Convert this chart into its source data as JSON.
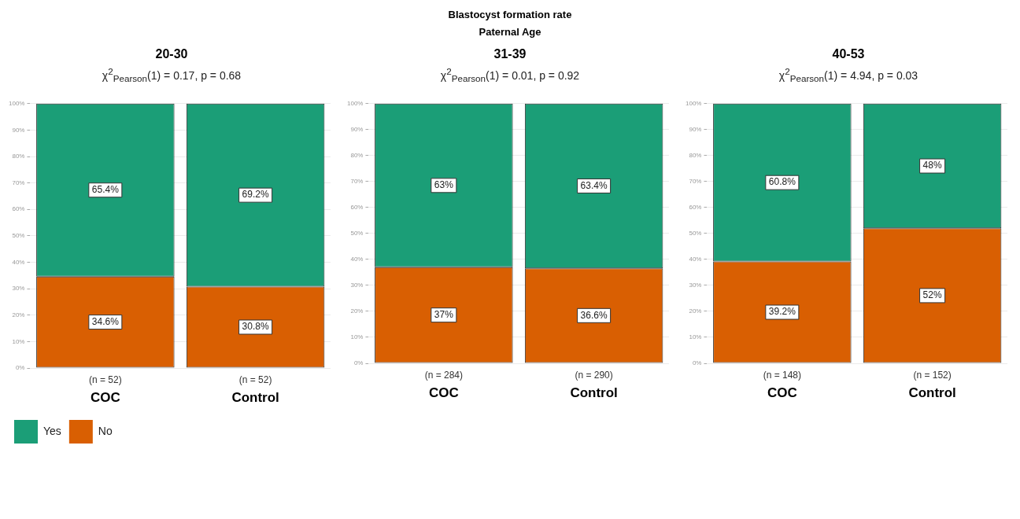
{
  "chart_data": [
    {
      "type": "bar",
      "stacked": true,
      "title": "20-30",
      "subtitle": "χ$^{2}$$_{Pearson}$(1) = 0.17, p = 0.68",
      "annotations": [
        "Blastocyst formation rate",
        "Paternal Age"
      ],
      "categories": [
        "(n = 52)\nCOC",
        "(n = 52)\nControl"
      ],
      "ylim": [
        0,
        100
      ],
      "yticks": [
        {
          "value": 0,
          "label": "0%"
        },
        {
          "value": 10,
          "label": "10%"
        },
        {
          "value": 20,
          "label": "20%"
        },
        {
          "value": 30,
          "label": "30%"
        },
        {
          "value": 40,
          "label": "40%"
        },
        {
          "value": 50,
          "label": "50%"
        },
        {
          "value": 60,
          "label": "60%"
        },
        {
          "value": 70,
          "label": "70%"
        },
        {
          "value": 80,
          "label": "80%"
        },
        {
          "value": 90,
          "label": "90%"
        },
        {
          "value": 100,
          "label": "100%"
        }
      ],
      "grid": "y",
      "legend": "bottom left",
      "series": [
        {
          "name": "No",
          "color": "#d95f02",
          "values": [
            34.6,
            30.8
          ],
          "value_labels": [
            "34.6%",
            "30.8%"
          ]
        },
        {
          "name": "Yes",
          "color": "#1b9e77",
          "values": [
            65.4,
            69.2
          ],
          "value_labels": [
            "65.4%",
            "69.2%"
          ]
        }
      ]
    },
    {
      "type": "bar",
      "stacked": true,
      "title": "31-39",
      "subtitle": "χ$^{2}$$_{Pearson}$(1) = 0.01, p = 0.92",
      "categories": [
        "(n = 284)\nCOC",
        "(n = 290)\nControl"
      ],
      "ylim": [
        0,
        100
      ],
      "yticks": [
        {
          "value": 0,
          "label": "0%"
        },
        {
          "value": 10,
          "label": "10%"
        },
        {
          "value": 20,
          "label": "20%"
        },
        {
          "value": 30,
          "label": "30%"
        },
        {
          "value": 40,
          "label": "40%"
        },
        {
          "value": 50,
          "label": "50%"
        },
        {
          "value": 60,
          "label": "60%"
        },
        {
          "value": 70,
          "label": "70%"
        },
        {
          "value": 80,
          "label": "80%"
        },
        {
          "value": 90,
          "label": "90%"
        },
        {
          "value": 100,
          "label": "100%"
        }
      ],
      "grid": "y",
      "series": [
        {
          "color": "#d95f02",
          "values": [
            37,
            36.6
          ],
          "value_labels": [
            "37%",
            "36.6%"
          ]
        },
        {
          "color": "#1b9e77",
          "values": [
            63,
            63.4
          ],
          "value_labels": [
            "63%",
            "63.4%"
          ]
        }
      ]
    },
    {
      "type": "bar",
      "stacked": true,
      "title": "40-53",
      "subtitle": "χ$^{2}$$_{Pearson}$(1) = 4.94, p = 0.03",
      "categories": [
        "(n = 148)\nCOC",
        "(n = 152)\nControl"
      ],
      "ylim": [
        0,
        100
      ],
      "yticks": [
        {
          "value": 0,
          "label": "0%"
        },
        {
          "value": 10,
          "label": "10%"
        },
        {
          "value": 20,
          "label": "20%"
        },
        {
          "value": 30,
          "label": "30%"
        },
        {
          "value": 40,
          "label": "40%"
        },
        {
          "value": 50,
          "label": "50%"
        },
        {
          "value": 60,
          "label": "60%"
        },
        {
          "value": 70,
          "label": "70%"
        },
        {
          "value": 80,
          "label": "80%"
        },
        {
          "value": 90,
          "label": "90%"
        },
        {
          "value": 100,
          "label": "100%"
        }
      ],
      "grid": "y",
      "series": [
        {
          "color": "#d95f02",
          "values": [
            39.2,
            52
          ],
          "value_labels": [
            "39.2%",
            "52%"
          ]
        },
        {
          "color": "#1b9e77",
          "values": [
            60.8,
            48
          ],
          "value_labels": [
            "60.8%",
            "48%"
          ]
        }
      ]
    }
  ]
}
